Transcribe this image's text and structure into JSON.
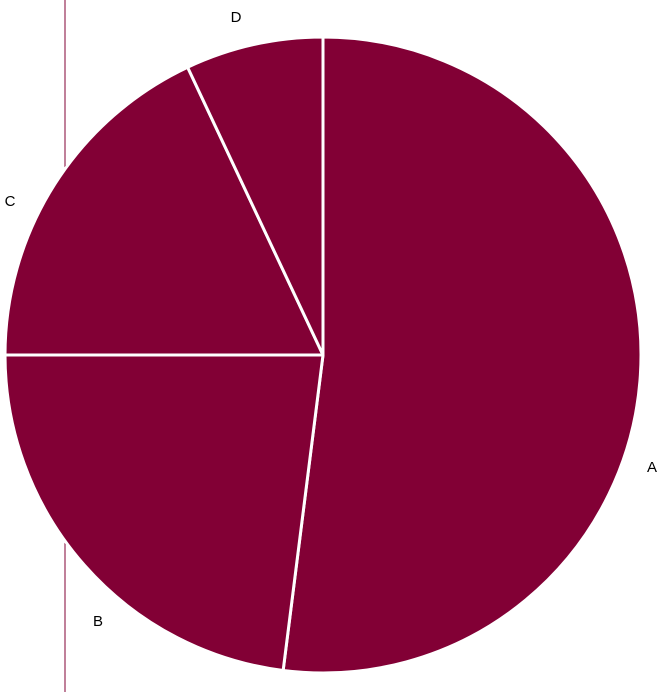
{
  "chart_data": {
    "type": "pie",
    "categories": [
      "A",
      "B",
      "C",
      "D"
    ],
    "values": [
      52,
      23,
      18,
      7
    ],
    "colors": {
      "slice": "#820035",
      "slice_border": "#ffffff",
      "guide_line": "#820035"
    },
    "start_angle_deg": 0,
    "direction": "clockwise",
    "legend": "none",
    "title": ""
  }
}
